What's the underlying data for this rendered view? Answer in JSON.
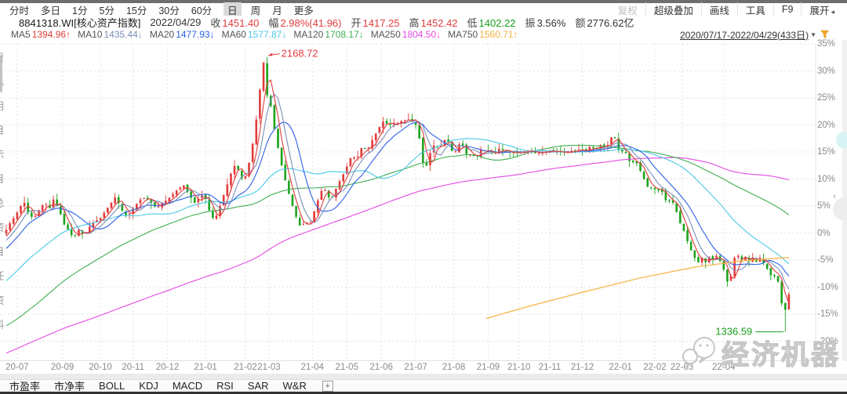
{
  "toolbar_periods": {
    "items": [
      {
        "label": "分时",
        "selected": false
      },
      {
        "label": "多日",
        "selected": false
      },
      {
        "label": "1分",
        "selected": false
      },
      {
        "label": "5分",
        "selected": false
      },
      {
        "label": "15分",
        "selected": false
      },
      {
        "label": "30分",
        "selected": false
      },
      {
        "label": "60分",
        "selected": false
      },
      {
        "label": "日",
        "selected": true
      },
      {
        "label": "周",
        "selected": false
      },
      {
        "label": "月",
        "selected": false
      },
      {
        "label": "更多",
        "selected": false
      }
    ]
  },
  "toolbar_tools": {
    "items": [
      {
        "label": "复权",
        "disabled": true
      },
      {
        "label": "超级叠加",
        "disabled": false
      },
      {
        "label": "画线",
        "disabled": false
      },
      {
        "label": "工具",
        "disabled": false
      },
      {
        "label": "F9",
        "disabled": false
      },
      {
        "label": "展开",
        "disabled": false,
        "icon": "triangle-left-icon"
      }
    ]
  },
  "quote_bar": {
    "code_name": "8841318.WI[核心资产指数]",
    "date": "2022/04/29",
    "fields": [
      {
        "label": "收",
        "value": "1451.40",
        "color": "#e23b3b"
      },
      {
        "label": "幅",
        "value": "2.98%(41.96)",
        "color": "#e23b3b"
      },
      {
        "label": "开",
        "value": "1417.25",
        "color": "#e23b3b"
      },
      {
        "label": "高",
        "value": "1452.42",
        "color": "#e23b3b"
      },
      {
        "label": "低",
        "value": "1402.22",
        "color": "#18a018"
      },
      {
        "label": "振",
        "value": "3.56%",
        "color": "#333333"
      },
      {
        "label": "额",
        "value": "2776.62亿",
        "color": "#333333"
      }
    ]
  },
  "ma_legend": {
    "items": [
      {
        "label": "MA5",
        "value": "1394.96",
        "arrow": "↑",
        "color": "#e23b3b"
      },
      {
        "label": "MA10",
        "value": "1435.44",
        "arrow": "↓",
        "color": "#7b8fb9"
      },
      {
        "label": "MA20",
        "value": "1477.93",
        "arrow": "↓",
        "color": "#2d60e6"
      },
      {
        "label": "MA60",
        "value": "1577.87",
        "arrow": "↓",
        "color": "#49c9e9"
      },
      {
        "label": "MA120",
        "value": "1708.17",
        "arrow": "↓",
        "color": "#3faf52"
      },
      {
        "label": "MA250",
        "value": "1804.50",
        "arrow": "↓",
        "color": "#e44ae4"
      },
      {
        "label": "MA750",
        "value": "1560.71",
        "arrow": "↑",
        "color": "#f6b23f"
      }
    ]
  },
  "range_selector": {
    "text": "2020/07/17-2022/04/29(433日)",
    "caret": "▼",
    "icon": "funnel-icon"
  },
  "indicator_tabs": {
    "items": [
      {
        "label": "市盈率"
      },
      {
        "label": "市净率"
      },
      {
        "label": "BOLL"
      },
      {
        "label": "KDJ"
      },
      {
        "label": "MACD"
      },
      {
        "label": "RSI"
      },
      {
        "label": "SAR"
      },
      {
        "label": "W&R"
      }
    ],
    "add_label": "+"
  },
  "watermark": {
    "text": "经济机器"
  },
  "left_clipped_text": "目总用目示目总资目任资料",
  "collapse_arrow": "‹",
  "chart_data": {
    "type": "candlestick",
    "instrument": "8841318.WI 核心资产指数",
    "base_value": 1635.6,
    "y_axis": {
      "unit": "%",
      "min": -20,
      "max": 35,
      "step": 5
    },
    "x_axis": {
      "months": [
        {
          "label": "20-07",
          "day": 6
        },
        {
          "label": "20-09",
          "day": 31
        },
        {
          "label": "20-10",
          "day": 52
        },
        {
          "label": "20-11",
          "day": 70
        },
        {
          "label": "20-12",
          "day": 89
        },
        {
          "label": "21-01",
          "day": 110
        },
        {
          "label": "21-02",
          "day": 132
        },
        {
          "label": "21-03",
          "day": 145
        },
        {
          "label": "21-04",
          "day": 169
        },
        {
          "label": "21-05",
          "day": 188
        },
        {
          "label": "21-06",
          "day": 207
        },
        {
          "label": "21-07",
          "day": 226
        },
        {
          "label": "21-08",
          "day": 247
        },
        {
          "label": "21-09",
          "day": 266
        },
        {
          "label": "21-10",
          "day": 283
        },
        {
          "label": "21-11",
          "day": 300
        },
        {
          "label": "21-12",
          "day": 318
        },
        {
          "label": "22-01",
          "day": 339
        },
        {
          "label": "22-02",
          "day": 358
        },
        {
          "label": "22-03",
          "day": 373
        },
        {
          "label": "22-04",
          "day": 396
        }
      ]
    },
    "annotations": {
      "high": {
        "value": "2168.72",
        "pct": 32.59,
        "day": 144
      },
      "low": {
        "value": "1336.59",
        "pct": -18.28,
        "day": 430
      }
    },
    "last_day": {
      "open": 1417.25,
      "close": 1451.4,
      "high": 1452.42,
      "low": 1402.22,
      "change_pct": 2.98,
      "amount": "2776.62亿"
    },
    "candle_colors": {
      "up": "#e23b3b",
      "down": "#1ca41c"
    },
    "grid_color": "#e3e3e3",
    "axis_color": "#e0e0e0",
    "total_days": 432,
    "close_waypoints": [
      [
        0,
        0
      ],
      [
        3,
        1.8
      ],
      [
        6,
        3.2
      ],
      [
        9,
        5
      ],
      [
        11,
        5.6
      ],
      [
        13,
        3.8
      ],
      [
        16,
        2.6
      ],
      [
        19,
        4.2
      ],
      [
        22,
        5.6
      ],
      [
        25,
        4.6
      ],
      [
        27,
        6.2
      ],
      [
        30,
        4.4
      ],
      [
        33,
        1.6
      ],
      [
        36,
        0.2
      ],
      [
        38,
        -1
      ],
      [
        41,
        0.6
      ],
      [
        44,
        -0.4
      ],
      [
        47,
        1.2
      ],
      [
        50,
        2.2
      ],
      [
        53,
        2.8
      ],
      [
        56,
        4.2
      ],
      [
        59,
        5.6
      ],
      [
        61,
        6.6
      ],
      [
        64,
        5
      ],
      [
        66,
        3.2
      ],
      [
        69,
        3.6
      ],
      [
        72,
        5
      ],
      [
        75,
        6.2
      ],
      [
        78,
        6.6
      ],
      [
        81,
        5.6
      ],
      [
        84,
        4.6
      ],
      [
        87,
        5.6
      ],
      [
        90,
        6.2
      ],
      [
        93,
        7.2
      ],
      [
        96,
        8.2
      ],
      [
        99,
        8.8
      ],
      [
        102,
        7
      ],
      [
        105,
        5.6
      ],
      [
        108,
        6.6
      ],
      [
        110,
        7.4
      ],
      [
        112,
        5.2
      ],
      [
        114,
        3.2
      ],
      [
        116,
        2.4
      ],
      [
        118,
        4
      ],
      [
        120,
        6
      ],
      [
        122,
        8
      ],
      [
        124,
        10
      ],
      [
        126,
        12
      ],
      [
        128,
        12.8
      ],
      [
        130,
        10.6
      ],
      [
        132,
        9.6
      ],
      [
        134,
        11.5
      ],
      [
        136,
        14.5
      ],
      [
        138,
        18.5
      ],
      [
        140,
        23.5
      ],
      [
        141,
        26.5
      ],
      [
        142,
        29.5
      ],
      [
        143,
        31.5
      ],
      [
        144,
        28
      ],
      [
        145,
        25.5
      ],
      [
        146,
        27
      ],
      [
        147,
        23.5
      ],
      [
        148,
        21
      ],
      [
        150,
        17.5
      ],
      [
        152,
        14
      ],
      [
        154,
        11
      ],
      [
        156,
        8.5
      ],
      [
        158,
        6
      ],
      [
        160,
        4
      ],
      [
        162,
        2
      ],
      [
        164,
        0.8
      ],
      [
        166,
        2.6
      ],
      [
        168,
        1.2
      ],
      [
        170,
        3
      ],
      [
        172,
        5
      ],
      [
        174,
        7
      ],
      [
        176,
        8.6
      ],
      [
        178,
        7.2
      ],
      [
        180,
        6
      ],
      [
        182,
        7.4
      ],
      [
        184,
        9
      ],
      [
        186,
        10.2
      ],
      [
        188,
        11.6
      ],
      [
        190,
        13
      ],
      [
        192,
        14.6
      ],
      [
        194,
        13.4
      ],
      [
        196,
        15
      ],
      [
        198,
        16.4
      ],
      [
        200,
        15
      ],
      [
        202,
        16.6
      ],
      [
        204,
        17.8
      ],
      [
        206,
        19
      ],
      [
        208,
        20.2
      ],
      [
        210,
        21
      ],
      [
        212,
        19.4
      ],
      [
        214,
        20.8
      ],
      [
        216,
        19.6
      ],
      [
        218,
        21.2
      ],
      [
        220,
        20.2
      ],
      [
        222,
        21.6
      ],
      [
        224,
        20.4
      ],
      [
        226,
        21
      ],
      [
        228,
        19
      ],
      [
        230,
        16
      ],
      [
        231,
        13
      ],
      [
        232,
        9.8
      ],
      [
        233,
        12.5
      ],
      [
        234,
        14
      ],
      [
        236,
        15.6
      ],
      [
        238,
        16.8
      ],
      [
        240,
        15.4
      ],
      [
        242,
        16.8
      ],
      [
        244,
        17.6
      ],
      [
        246,
        16
      ],
      [
        248,
        14.4
      ],
      [
        250,
        15.8
      ],
      [
        252,
        17
      ],
      [
        254,
        15.4
      ],
      [
        256,
        13.8
      ],
      [
        258,
        15.2
      ],
      [
        260,
        13.6
      ],
      [
        262,
        14.8
      ],
      [
        264,
        16
      ],
      [
        266,
        14.6
      ],
      [
        268,
        15.4
      ],
      [
        270,
        14.2
      ],
      [
        272,
        15.2
      ],
      [
        274,
        16
      ],
      [
        276,
        14.6
      ],
      [
        278,
        15.4
      ],
      [
        280,
        14.4
      ],
      [
        282,
        15.2
      ],
      [
        284,
        14.6
      ],
      [
        286,
        15.4
      ],
      [
        288,
        14.8
      ],
      [
        290,
        15.6
      ],
      [
        292,
        14.4
      ],
      [
        294,
        15.2
      ],
      [
        296,
        14.6
      ],
      [
        298,
        15.4
      ],
      [
        300,
        14.8
      ],
      [
        302,
        15.6
      ],
      [
        304,
        14.6
      ],
      [
        306,
        15.4
      ],
      [
        308,
        14.6
      ],
      [
        310,
        15.2
      ],
      [
        312,
        14.8
      ],
      [
        314,
        15.6
      ],
      [
        316,
        15
      ],
      [
        318,
        15.8
      ],
      [
        320,
        14.8
      ],
      [
        322,
        15.6
      ],
      [
        324,
        16.2
      ],
      [
        326,
        15.2
      ],
      [
        328,
        16
      ],
      [
        330,
        16.6
      ],
      [
        332,
        15.6
      ],
      [
        334,
        17
      ],
      [
        336,
        18.4
      ],
      [
        337,
        17.6
      ],
      [
        338,
        16.2
      ],
      [
        340,
        14.6
      ],
      [
        342,
        15.6
      ],
      [
        344,
        14
      ],
      [
        346,
        12.6
      ],
      [
        348,
        13.6
      ],
      [
        350,
        12.2
      ],
      [
        352,
        10.8
      ],
      [
        354,
        9.2
      ],
      [
        356,
        8
      ],
      [
        358,
        8.8
      ],
      [
        360,
        7.4
      ],
      [
        362,
        8.4
      ],
      [
        364,
        6.8
      ],
      [
        366,
        5.4
      ],
      [
        368,
        6.4
      ],
      [
        370,
        4.8
      ],
      [
        372,
        3
      ],
      [
        373,
        1.8
      ],
      [
        375,
        0.4
      ],
      [
        377,
        -1.5
      ],
      [
        379,
        -3.2
      ],
      [
        381,
        -4.6
      ],
      [
        383,
        -5.4
      ],
      [
        385,
        -4.6
      ],
      [
        387,
        -5.4
      ],
      [
        389,
        -4.4
      ],
      [
        391,
        -5
      ],
      [
        393,
        -4.2
      ],
      [
        395,
        -5.2
      ],
      [
        397,
        -6.8
      ],
      [
        399,
        -9
      ],
      [
        400,
        -10.8
      ],
      [
        401,
        -8
      ],
      [
        402,
        -6.2
      ],
      [
        403,
        -4.6
      ],
      [
        405,
        -4.2
      ],
      [
        407,
        -5
      ],
      [
        409,
        -4.4
      ],
      [
        411,
        -5.2
      ],
      [
        413,
        -4.5
      ],
      [
        415,
        -5.3
      ],
      [
        417,
        -4.6
      ],
      [
        419,
        -5.6
      ],
      [
        421,
        -6.6
      ],
      [
        423,
        -7.8
      ],
      [
        424,
        -7
      ],
      [
        425,
        -8
      ],
      [
        426,
        -7.4
      ],
      [
        427,
        -9
      ],
      [
        428,
        -10.5
      ],
      [
        429,
        -13
      ],
      [
        430,
        -16
      ],
      [
        430.8,
        -18
      ],
      [
        431,
        -14.2
      ],
      [
        432,
        -11.3
      ]
    ],
    "prehistory_waypoints": [
      [
        -300,
        -40
      ],
      [
        -250,
        -34
      ],
      [
        -200,
        -28
      ],
      [
        -150,
        -23
      ],
      [
        -120,
        -22
      ],
      [
        -100,
        -30
      ],
      [
        -85,
        -28
      ],
      [
        -60,
        -18
      ],
      [
        -40,
        -12
      ],
      [
        -20,
        -6
      ],
      [
        -5,
        -1.5
      ]
    ],
    "ma_windows": [
      250,
      120,
      60,
      20,
      10,
      5
    ],
    "ma750_waypoints": [
      [
        265,
        -15.8
      ],
      [
        290,
        -13.4
      ],
      [
        320,
        -10.8
      ],
      [
        350,
        -8.3
      ],
      [
        380,
        -6.3
      ],
      [
        405,
        -5.2
      ],
      [
        420,
        -4.8
      ],
      [
        432,
        -4.5
      ]
    ]
  }
}
